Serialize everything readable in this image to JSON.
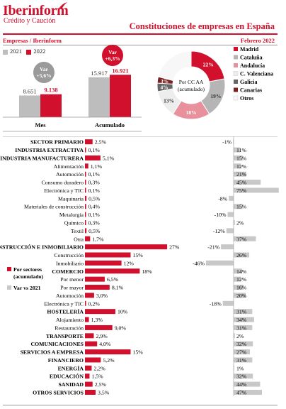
{
  "header": {
    "logo": "Iberinform",
    "logo_sub": "Crédito y Caución",
    "title": "Constituciones de empresas en España",
    "subtitle_left": "Empresas / Iberinform",
    "subtitle_right": "Febrero 2022"
  },
  "colors": {
    "red": "#d0102c",
    "grey": "#bdbdbd",
    "pink": "#e8909c",
    "dark_grey": "#666666",
    "brown": "#7a2020"
  },
  "chart_data": [
    {
      "type": "bar",
      "categories": [
        "Mes",
        "Acumulado"
      ],
      "series": [
        {
          "name": "2021",
          "values": [
            8651,
            15917
          ],
          "labels": [
            "8.651",
            "15.917"
          ]
        },
        {
          "name": "2022",
          "values": [
            9138,
            16921
          ],
          "labels": [
            "9.138",
            "16.921"
          ]
        }
      ],
      "annotations": [
        "Var +5,6%",
        "Var +6,3%"
      ]
    },
    {
      "type": "pie",
      "center_label": "Por CC AA (acumulado)",
      "labels": [
        "Madrid",
        "Cataluña",
        "Andalucía",
        "C. Valenciana",
        "Galicia",
        "Canarias",
        "Otros"
      ],
      "values": [
        22,
        19,
        18,
        13,
        4,
        3,
        21
      ],
      "value_labels": [
        "22%",
        "19%",
        "18%",
        "13%",
        "4%",
        "3%",
        ""
      ]
    },
    {
      "type": "bar",
      "orientation": "horizontal",
      "legend": [
        "Por sectores (acumulado)",
        "Var vs 2021"
      ],
      "rows": [
        {
          "label": "SECTOR PRIMARIO",
          "bold": true,
          "share": 2.5,
          "share_label": "2,5%",
          "var": -1,
          "var_label": "-1%"
        },
        {
          "label": "INDUSTRIA EXTRACTIVA",
          "bold": true,
          "share": 0.1,
          "share_label": "0,1%",
          "var": 11,
          "var_label": "11%"
        },
        {
          "label": "INDUSTRIA MANUFACTURERA",
          "bold": true,
          "share": 5.1,
          "share_label": "5,1%",
          "var": 15,
          "var_label": "15%"
        },
        {
          "label": "Alimentación",
          "bold": false,
          "share": 1.1,
          "share_label": "1,1%",
          "var": 12,
          "var_label": "12%"
        },
        {
          "label": "Automoción",
          "bold": false,
          "share": 0.1,
          "share_label": "0,1%",
          "var": 21,
          "var_label": "21%"
        },
        {
          "label": "Consumo duradero",
          "bold": false,
          "share": 0.3,
          "share_label": "0,3%",
          "var": 45,
          "var_label": "45%"
        },
        {
          "label": "Electrónica y TIC",
          "bold": false,
          "share": 0.1,
          "share_label": "0,1%",
          "var": 75,
          "var_label": "75%"
        },
        {
          "label": "Maquinaria",
          "bold": false,
          "share": 0.5,
          "share_label": "0,5%",
          "var": -8,
          "var_label": "-8%"
        },
        {
          "label": "Materiales de construcción",
          "bold": false,
          "share": 0.4,
          "share_label": "0,4%",
          "var": 15,
          "var_label": "15%"
        },
        {
          "label": "Metalurgia",
          "bold": false,
          "share": 0.1,
          "share_label": "0,1%",
          "var": -10,
          "var_label": "-10%"
        },
        {
          "label": "Químico",
          "bold": false,
          "share": 0.3,
          "share_label": "0,3%",
          "var": 2,
          "var_label": "2%"
        },
        {
          "label": "Textil",
          "bold": false,
          "share": 0.5,
          "share_label": "0,5%",
          "var": -12,
          "var_label": "-12%"
        },
        {
          "label": "Otra",
          "bold": false,
          "share": 1.7,
          "share_label": "1,7%",
          "var": 37,
          "var_label": "37%"
        },
        {
          "label": "CONSTRUCCIÓN E INMOBILIARIO",
          "bold": true,
          "share": 27,
          "share_label": "27%",
          "var": -21,
          "var_label": "-21%"
        },
        {
          "label": "Construcción",
          "bold": false,
          "share": 15,
          "share_label": "15%",
          "var": 26,
          "var_label": "26%"
        },
        {
          "label": "Inmobiliario",
          "bold": false,
          "share": 12,
          "share_label": "12%",
          "var": -46,
          "var_label": "-46%"
        },
        {
          "label": "COMERCIO",
          "bold": true,
          "share": 18,
          "share_label": "18%",
          "var": 14,
          "var_label": "14%"
        },
        {
          "label": "Por menor",
          "bold": false,
          "share": 6.5,
          "share_label": "6,5%",
          "var": 12,
          "var_label": "12%"
        },
        {
          "label": "Por mayor",
          "bold": false,
          "share": 8.1,
          "share_label": "8,1%",
          "var": 16,
          "var_label": "16%"
        },
        {
          "label": "Automoción",
          "bold": false,
          "share": 3.0,
          "share_label": "3,0%",
          "var": 20,
          "var_label": "20%"
        },
        {
          "label": "Electrónica y TIC",
          "bold": false,
          "share": 0.2,
          "share_label": "0,2%",
          "var": -18,
          "var_label": "-18%"
        },
        {
          "label": "HOSTELERÍA",
          "bold": true,
          "share": 10,
          "share_label": "10%",
          "var": 31,
          "var_label": "31%"
        },
        {
          "label": "Alojamiento",
          "bold": false,
          "share": 1.3,
          "share_label": "1,3%",
          "var": 34,
          "var_label": "34%"
        },
        {
          "label": "Restauración",
          "bold": false,
          "share": 9.0,
          "share_label": "9,0%",
          "var": 31,
          "var_label": "31%"
        },
        {
          "label": "TRANSPORTE",
          "bold": true,
          "share": 2.9,
          "share_label": "2,9%",
          "var": 2,
          "var_label": "2%"
        },
        {
          "label": "COMUNICACIONES",
          "bold": true,
          "share": 4.0,
          "share_label": "4,0%",
          "var": 32,
          "var_label": "32%"
        },
        {
          "label": "SERVICIOS A EMPRESA",
          "bold": true,
          "share": 15,
          "share_label": "15%",
          "var": 27,
          "var_label": "27%"
        },
        {
          "label": "FINANCIERO",
          "bold": true,
          "share": 5.2,
          "share_label": "5,2%",
          "var": 31,
          "var_label": "31%"
        },
        {
          "label": "ENERGÍA",
          "bold": true,
          "share": 2.2,
          "share_label": "2,2%",
          "var": 1,
          "var_label": "1%"
        },
        {
          "label": "EDUCACIÓN",
          "bold": true,
          "share": 1.5,
          "share_label": "1,5%",
          "var": 32,
          "var_label": "32%"
        },
        {
          "label": "SANIDAD",
          "bold": true,
          "share": 2.5,
          "share_label": "2,5%",
          "var": 44,
          "var_label": "44%"
        },
        {
          "label": "OTROS SERVICIOS",
          "bold": true,
          "share": 3.5,
          "share_label": "3,5%",
          "var": 47,
          "var_label": "47%"
        }
      ]
    }
  ]
}
